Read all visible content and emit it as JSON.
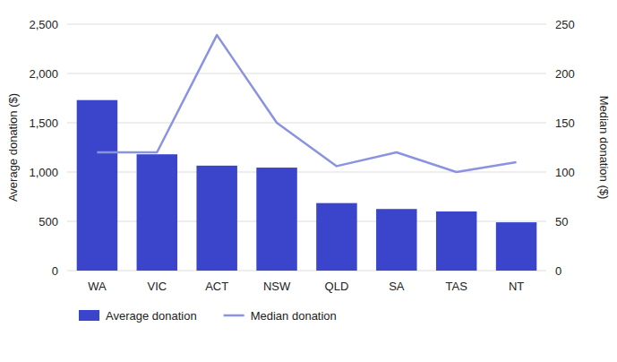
{
  "chart_data": {
    "type": "bar",
    "categories": [
      "WA",
      "VIC",
      "ACT",
      "NSW",
      "QLD",
      "SA",
      "TAS",
      "NT"
    ],
    "series": [
      {
        "name": "Average donation",
        "type": "bar",
        "color": "#3a45cc",
        "values": [
          1730,
          1180,
          1065,
          1045,
          685,
          625,
          600,
          490
        ]
      },
      {
        "name": "Median donation",
        "type": "line",
        "color": "#8a93e0",
        "axis": "y2",
        "values": [
          120,
          120,
          239,
          150,
          106,
          120,
          100,
          110
        ]
      }
    ],
    "y_label": "Average donation ($)",
    "y2_label": "Median donation ($)",
    "ylim": [
      0,
      2500
    ],
    "yticks": [
      0,
      500,
      {
        "value": 1000,
        "label": "1,000"
      },
      {
        "value": 1500,
        "label": "1,500"
      },
      {
        "value": 2000,
        "label": "2,000"
      },
      {
        "value": 2500,
        "label": "2,500"
      }
    ],
    "y2lim": [
      0,
      250
    ],
    "y2ticks": [
      0,
      50,
      100,
      150,
      200,
      250
    ],
    "grid": true,
    "legend": "bottom"
  }
}
